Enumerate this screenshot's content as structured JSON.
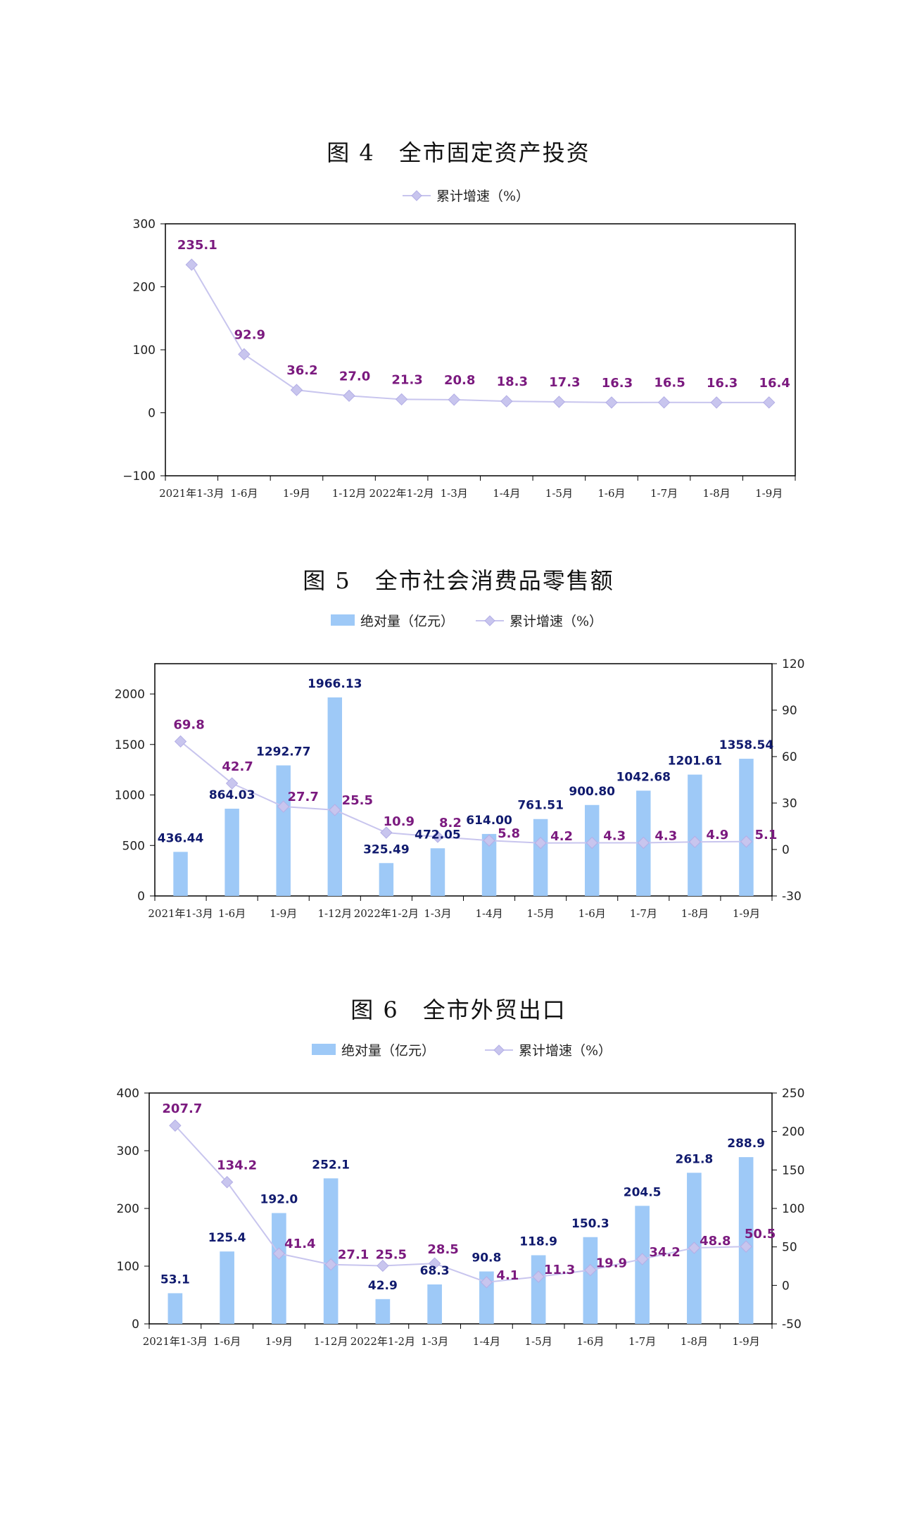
{
  "colors": {
    "bar": "#9ec9f7",
    "line": "#c8c5ee",
    "marker": "#c8c5ee",
    "rate_label": "#7b1a7f",
    "abs_label": "#101a6e"
  },
  "legend": {
    "abs": "绝对量（亿元）",
    "rate": "累计增速（%）"
  },
  "chart_data": [
    {
      "type": "line",
      "title": "图 4　全市固定资产投资",
      "categories": [
        "2021年1-3月",
        "1-6月",
        "1-9月",
        "1-12月",
        "2022年1-2月",
        "1-3月",
        "1-4月",
        "1-5月",
        "1-6月",
        "1-7月",
        "1-8月",
        "1-9月"
      ],
      "series": [
        {
          "name": "累计增速（%）",
          "values": [
            235.1,
            92.9,
            36.2,
            27.0,
            21.3,
            20.8,
            18.3,
            17.3,
            16.3,
            16.5,
            16.3,
            16.4
          ],
          "labels": [
            "235.1",
            "92.9",
            "36.2",
            "27.0",
            "21.3",
            "20.8",
            "18.3",
            "17.3",
            "16.3",
            "16.5",
            "16.3",
            "16.4"
          ]
        }
      ],
      "ylim": [
        -100,
        300
      ],
      "yticks": [
        "300",
        "200",
        "100",
        "0",
        "−100"
      ],
      "legend_position": "top"
    },
    {
      "type": "bar",
      "title": "图 5　全市社会消费品零售额",
      "categories": [
        "2021年1-3月",
        "1-6月",
        "1-9月",
        "1-12月",
        "2022年1-2月",
        "1-3月",
        "1-4月",
        "1-5月",
        "1-6月",
        "1-7月",
        "1-8月",
        "1-9月"
      ],
      "series": [
        {
          "name": "绝对量（亿元）",
          "axis": "left",
          "values": [
            436.44,
            864.03,
            1292.77,
            1966.13,
            325.49,
            472.05,
            614.0,
            761.51,
            900.8,
            1042.68,
            1201.61,
            1358.54
          ],
          "labels": [
            "436.44",
            "864.03",
            "1292.77",
            "1966.13",
            "325.49",
            "472.05",
            "614.00",
            "761.51",
            "900.80",
            "1042.68",
            "1201.61",
            "1358.54"
          ]
        },
        {
          "name": "累计增速（%）",
          "axis": "right",
          "values": [
            69.8,
            42.7,
            27.7,
            25.5,
            10.9,
            8.2,
            5.8,
            4.2,
            4.3,
            4.3,
            4.9,
            5.1
          ],
          "labels": [
            "69.8",
            "42.7",
            "27.7",
            "25.5",
            "10.9",
            "8.2",
            "5.8",
            "4.2",
            "4.3",
            "4.3",
            "4.9",
            "5.1"
          ]
        }
      ],
      "ylim": [
        0,
        2300
      ],
      "y2lim": [
        -30,
        120
      ],
      "yticks": [
        "2000",
        "1500",
        "1000",
        "500",
        "0"
      ],
      "y2ticks": [
        "120",
        "90",
        "60",
        "30",
        "0",
        "-30"
      ],
      "legend_position": "top"
    },
    {
      "type": "bar",
      "title": "图 6　全市外贸出口",
      "categories": [
        "2021年1-3月",
        "1-6月",
        "1-9月",
        "1-12月",
        "2022年1-2月",
        "1-3月",
        "1-4月",
        "1-5月",
        "1-6月",
        "1-7月",
        "1-8月",
        "1-9月"
      ],
      "series": [
        {
          "name": "绝对量（亿元）",
          "axis": "left",
          "values": [
            53.1,
            125.4,
            192.0,
            252.1,
            42.9,
            68.3,
            90.8,
            118.9,
            150.3,
            204.5,
            261.8,
            288.9
          ],
          "labels": [
            "53.1",
            "125.4",
            "192.0",
            "252.1",
            "42.9",
            "68.3",
            "90.8",
            "118.9",
            "150.3",
            "204.5",
            "261.8",
            "288.9"
          ]
        },
        {
          "name": "累计增速（%）",
          "axis": "right",
          "values": [
            207.7,
            134.2,
            41.4,
            27.1,
            25.5,
            28.5,
            4.1,
            11.3,
            19.9,
            34.2,
            48.8,
            50.5
          ],
          "labels": [
            "207.7",
            "134.2",
            "41.4",
            "27.1",
            "25.5",
            "28.5",
            "4.1",
            "11.3",
            "19.9",
            "34.2",
            "48.8",
            "50.5"
          ]
        }
      ],
      "ylim": [
        0,
        400
      ],
      "y2lim": [
        -50,
        250
      ],
      "yticks": [
        "400",
        "300",
        "200",
        "100",
        "0"
      ],
      "y2ticks": [
        "250",
        "200",
        "150",
        "100",
        "50",
        "0",
        "-50"
      ],
      "legend_position": "top"
    }
  ]
}
